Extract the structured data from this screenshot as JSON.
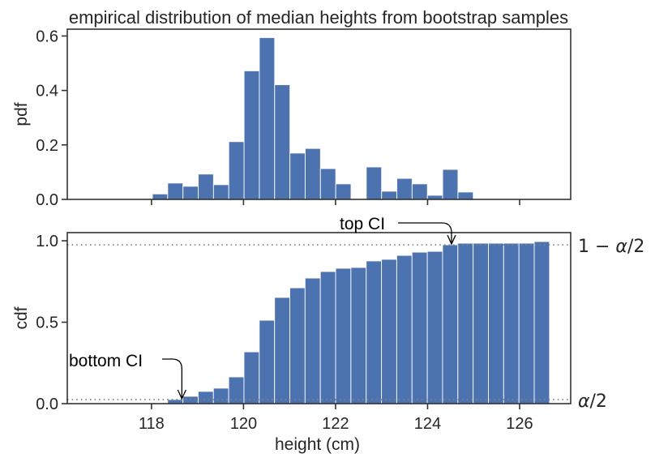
{
  "chart_data": [
    {
      "type": "bar",
      "subtype": "histogram",
      "title": "empirical distribution of median heights from bootstrap samples",
      "xlabel": "",
      "ylabel": "pdf",
      "xlim": [
        116.17,
        127.11
      ],
      "ylim": [
        0,
        0.625
      ],
      "xticks": [
        118,
        120,
        122,
        124,
        126
      ],
      "xtick_labels_shown": false,
      "yticks": [
        0.0,
        0.2,
        0.4,
        0.6
      ],
      "ytick_labels": [
        "0.0",
        "0.2",
        "0.4",
        "0.6"
      ],
      "grid": false,
      "bin_start": 118.02,
      "bin_width": 0.332,
      "values": [
        0.02,
        0.06,
        0.048,
        0.093,
        0.054,
        0.212,
        0.472,
        0.594,
        0.421,
        0.17,
        0.187,
        0.113,
        0.057,
        0.0,
        0.119,
        0.03,
        0.077,
        0.057,
        0.015,
        0.11,
        0.027
      ],
      "color": "#4c72b0"
    },
    {
      "type": "bar",
      "subtype": "cumulative histogram",
      "title": "",
      "xlabel": "height (cm)",
      "ylabel": "cdf",
      "xlim": [
        116.17,
        127.11
      ],
      "ylim": [
        0,
        1.05
      ],
      "xticks": [
        118,
        120,
        122,
        124,
        126
      ],
      "xtick_labels": [
        "118",
        "120",
        "122",
        "124",
        "126"
      ],
      "yticks": [
        0.0,
        0.5,
        1.0
      ],
      "ytick_labels": [
        "0.0",
        "0.5",
        "1.0"
      ],
      "grid": false,
      "bin_start": 118.35,
      "bin_width": 0.332,
      "values": [
        0.025,
        0.045,
        0.075,
        0.095,
        0.164,
        0.318,
        0.512,
        0.652,
        0.711,
        0.771,
        0.811,
        0.831,
        0.836,
        0.876,
        0.886,
        0.91,
        0.93,
        0.935,
        0.975,
        0.985,
        0.985,
        0.985,
        0.985,
        0.985,
        0.995
      ],
      "color": "#4c72b0",
      "reference_lines": [
        {
          "y": 0.975,
          "label": "1 − α/2",
          "style": "dotted",
          "color": "#808080"
        },
        {
          "y": 0.025,
          "label": "α/2",
          "style": "dotted",
          "color": "#808080"
        }
      ],
      "annotations": [
        {
          "text": "top CI",
          "arrow_to": {
            "x": 124.52,
            "y": 0.975
          }
        },
        {
          "text": "bottom CI",
          "arrow_to": {
            "x": 118.66,
            "y": 0.025
          }
        }
      ]
    }
  ]
}
